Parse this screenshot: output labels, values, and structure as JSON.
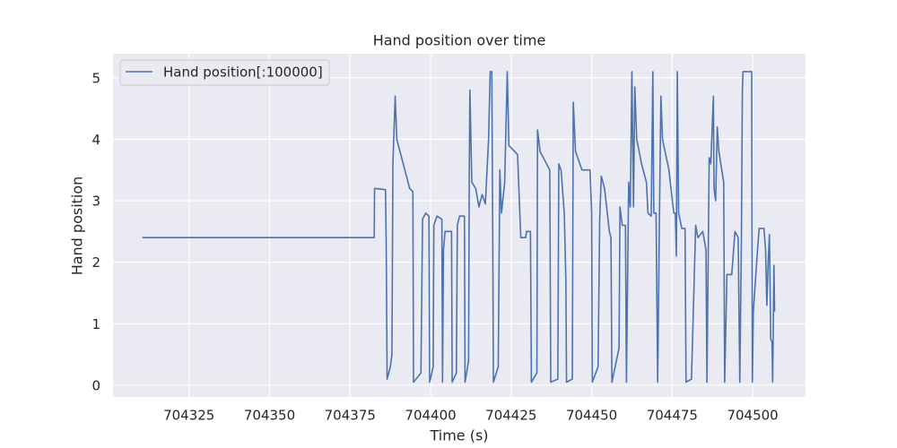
{
  "chart_data": {
    "type": "line",
    "title": "Hand position over time",
    "xlabel": "Time (s)",
    "ylabel": "Hand position",
    "x": [
      704310.5,
      704382.5,
      704382.6,
      704386,
      704386.2,
      704386.5,
      704387.5,
      704388,
      704388.3,
      704389,
      704389.5,
      704392,
      704393.5,
      704394.5,
      704394.7,
      704397,
      704397.5,
      704398.5,
      704399.5,
      704399.7,
      704400.8,
      704401,
      704402,
      704403.5,
      704403.7,
      704404,
      704404.5,
      704406.5,
      704406.7,
      704408,
      704408.3,
      704409,
      704410.5,
      704410.7,
      704411.8,
      704412,
      704412.2,
      704412.8,
      704414,
      704415,
      704416,
      704417,
      704418,
      704418.5,
      704419,
      704419.3,
      704419.5,
      704421,
      704421.5,
      704422,
      704423,
      704423.8,
      704424.3,
      704427,
      704428,
      704429.5,
      704429.8,
      704431,
      704431.3,
      704433,
      704433.2,
      704434,
      704436,
      704437,
      704437.3,
      704439.5,
      704439.8,
      704440.5,
      704441.5,
      704442,
      704442.2,
      704444,
      704444.3,
      704445,
      704447,
      704449.5,
      704450,
      704450.2,
      704452,
      704452.5,
      704453,
      704454,
      704455.5,
      704456,
      704456.3,
      704458.5,
      704458.8,
      704459.5,
      704460.5,
      704460.8,
      704461.5,
      704462,
      704462.5,
      704463,
      704463.4,
      704464,
      704465.5,
      704467,
      704467.5,
      704468.5,
      704469,
      704469.3,
      704470,
      704470.5,
      704471,
      704471.5,
      704472,
      704474,
      704475.5,
      704476,
      704476.3,
      704476.6,
      704477,
      704478,
      704479,
      704479.3,
      704481,
      704482.3,
      704483,
      704484.5,
      704485.5,
      704485.8,
      704486.5,
      704487,
      704487.8,
      704488,
      704488.5,
      704489,
      704489.5,
      704491,
      704491.3,
      704492,
      704493.5,
      704494.5,
      704495.5,
      704496,
      704496.5,
      704496.8,
      704497,
      704499.7,
      704499.9,
      704500.2,
      704501.5,
      704502,
      704503.5,
      704504,
      704504.4,
      704504.8,
      704505.2,
      704505.6,
      704506,
      704506.2,
      704506.6,
      704506.8
    ],
    "series": [
      {
        "name": "Hand position[:100000]",
        "color": "#4c72b0",
        "values": [
          2.4,
          2.4,
          3.2,
          3.18,
          2.4,
          0.1,
          0.3,
          0.5,
          3.6,
          4.7,
          4,
          3.5,
          3.2,
          3.15,
          0.05,
          0.2,
          2.7,
          2.8,
          2.75,
          0.05,
          0.3,
          2.6,
          2.75,
          2.7,
          0.05,
          2.2,
          2.5,
          2.5,
          0.05,
          0.2,
          2.6,
          2.75,
          2.75,
          0.05,
          0.4,
          3.4,
          4.8,
          3.3,
          3.2,
          2.9,
          3.1,
          2.95,
          4,
          5.1,
          5.1,
          2.4,
          0.05,
          0.3,
          3.5,
          2.8,
          3.3,
          5.1,
          3.9,
          3.75,
          2.4,
          2.4,
          2.5,
          2.5,
          0.05,
          0.2,
          4.15,
          3.8,
          3.6,
          3.5,
          0.05,
          0.1,
          3.6,
          3.5,
          2.8,
          1.7,
          0.05,
          0.1,
          4.6,
          3.8,
          3.5,
          3.5,
          2.8,
          0.05,
          0.3,
          2.7,
          3.4,
          3.2,
          2.5,
          2.4,
          0.05,
          0.6,
          2.9,
          2.6,
          2.6,
          0.05,
          3.3,
          2.9,
          5.1,
          2.9,
          4.85,
          4,
          3.6,
          3.3,
          2.8,
          2.75,
          5.1,
          2.8,
          2.8,
          0.05,
          2.5,
          4.7,
          4,
          3.5,
          2.8,
          2.8,
          2.1,
          5.1,
          2.8,
          2.55,
          2.55,
          0.05,
          0.1,
          2.6,
          2.4,
          2.5,
          2.2,
          0.05,
          3.7,
          3.6,
          4.7,
          3.2,
          3,
          4.2,
          3.8,
          3.3,
          0.05,
          1.8,
          1.8,
          2.5,
          2.4,
          0.05,
          2.4,
          4.8,
          5.1,
          5.1,
          0.05,
          1.2,
          2.2,
          2.55,
          2.55,
          2.2,
          1.3,
          2,
          2.45,
          0.75,
          0.7,
          0.05,
          1.95,
          1.2
        ]
      }
    ],
    "xlim": [
      704301.4,
      704516.4
    ],
    "ylim": [
      -0.19,
      5.39
    ],
    "xticks": [
      704325,
      704350,
      704375,
      704400,
      704425,
      704450,
      704475,
      704500
    ],
    "yticks": [
      0,
      1,
      2,
      3,
      4,
      5
    ],
    "grid": true,
    "legend": "upper left"
  }
}
